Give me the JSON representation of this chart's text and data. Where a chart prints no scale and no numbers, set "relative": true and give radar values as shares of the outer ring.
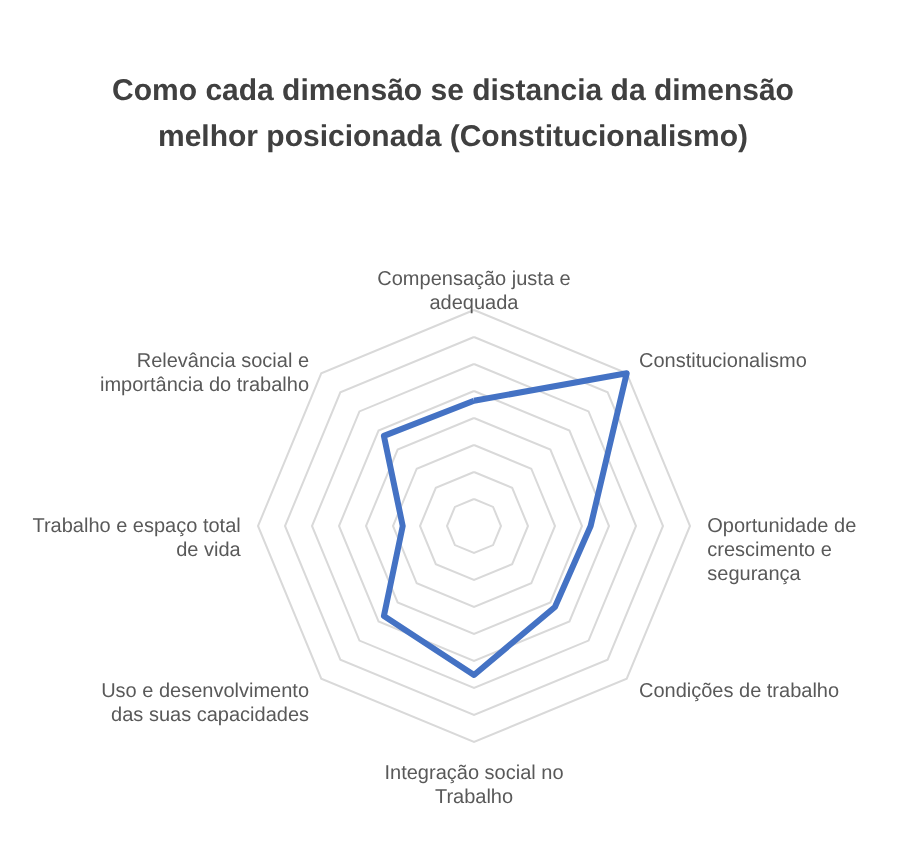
{
  "chart_data": {
    "type": "radar",
    "title": "Como cada dimensão se distancia da dimensão melhor posicionada (Constitucionalismo)",
    "relative": true,
    "grid": true,
    "categories": [
      "Compensação justa e adequada",
      "Constitucionalismo",
      "Oportunidade de crescimento e segurança",
      "Condições de trabalho",
      "Integração social no Trabalho",
      "Uso e desenvolvimento das suas capacidades",
      "Trabalho e espaço total de vida",
      "Relevância social e importância do trabalho"
    ],
    "series": [
      {
        "color": "#4472c4",
        "values": [
          0.58,
          1,
          0.54,
          0.53,
          0.69,
          0.59,
          0.33,
          0.59
        ]
      }
    ]
  }
}
